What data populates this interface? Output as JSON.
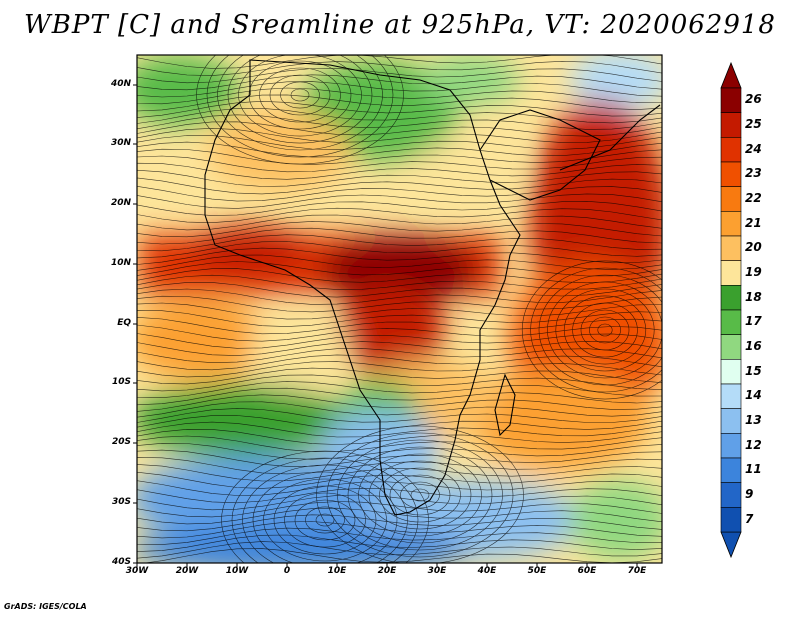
{
  "title": "WBPT [C] and Sreamline at 925hPa, VT: 2020062918",
  "credit": "GrADS: IGES/COLA",
  "map": {
    "lat_labels": [
      "40N",
      "30N",
      "20N",
      "10N",
      "EQ",
      "10S",
      "20S",
      "30S",
      "40S"
    ],
    "lon_labels": [
      "30W",
      "20W",
      "10W",
      "0",
      "10E",
      "20E",
      "30E",
      "40E",
      "50E",
      "60E",
      "70E"
    ]
  },
  "colorbar": {
    "labels": [
      "26",
      "25",
      "24",
      "23",
      "22",
      "21",
      "20",
      "19",
      "18",
      "17",
      "16",
      "15",
      "14",
      "13",
      "12",
      "11",
      "9",
      "7"
    ],
    "colors": [
      "#8b0000",
      "#c41a00",
      "#e03200",
      "#f05000",
      "#f87a10",
      "#fca030",
      "#fdc060",
      "#fde59a",
      "#3aa02e",
      "#58bb48",
      "#90d880",
      "#e0fff0",
      "#b4dcf8",
      "#8cc0f0",
      "#60a0e8",
      "#3c84dc",
      "#2266c8",
      "#1050b0"
    ]
  },
  "chart_data": {
    "type": "heatmap",
    "title": "WBPT [C] and Sreamline at 925hPa, VT: 2020062918",
    "x_ticks": [
      "30W",
      "20W",
      "10W",
      "0",
      "10E",
      "20E",
      "30E",
      "40E",
      "50E",
      "60E",
      "70E"
    ],
    "y_ticks": [
      "40N",
      "30N",
      "20N",
      "10N",
      "EQ",
      "10S",
      "20S",
      "30S",
      "40S"
    ],
    "xlim": [
      "30W",
      "75E"
    ],
    "ylim": [
      "40S",
      "45N"
    ],
    "value_range": [
      7,
      26
    ],
    "units": "C"
  }
}
